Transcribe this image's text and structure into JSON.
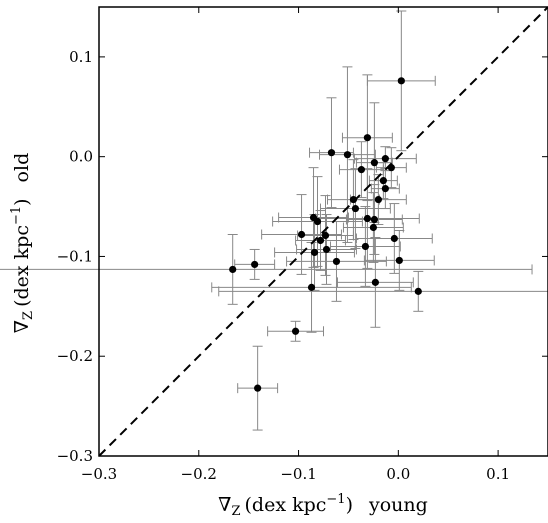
{
  "chart_data": {
    "type": "scatter",
    "title": "",
    "xlabel_main": "∇",
    "xlabel_sub": "Z",
    "xlabel_unit": "(dex kpc",
    "xlabel_exp": "−1",
    "xlabel_close": ")",
    "xlabel_tag": "young",
    "ylabel_main": "∇",
    "ylabel_sub": "Z",
    "ylabel_unit": "(dex kpc",
    "ylabel_exp": "−1",
    "ylabel_close": ")",
    "ylabel_tag": "old",
    "xlim": [
      -0.3,
      0.15
    ],
    "ylim": [
      -0.3,
      0.15
    ],
    "xticks": [
      -0.3,
      -0.2,
      -0.1,
      0.0,
      0.1
    ],
    "yticks": [
      -0.3,
      -0.2,
      -0.1,
      0.0,
      0.1
    ],
    "xtick_labels": [
      "−0.3",
      "−0.2",
      "−0.1",
      "0.0",
      "0.1"
    ],
    "ytick_labels": [
      "−0.3",
      "−0.2",
      "−0.1",
      "0.0",
      "0.1"
    ],
    "reference_line": {
      "style": "dashed",
      "from": [
        -0.3,
        -0.3
      ],
      "to": [
        0.15,
        0.15
      ]
    },
    "grid": false,
    "colors": {
      "points": "#000000",
      "errorbars": "#888888",
      "frame": "#000000"
    },
    "points": [
      {
        "x": 0.003,
        "y": 0.076,
        "xerr": 0.034,
        "yerr": 0.07
      },
      {
        "x": -0.031,
        "y": 0.019,
        "xerr": 0.025,
        "yerr": 0.063
      },
      {
        "x": -0.067,
        "y": 0.004,
        "xerr": 0.022,
        "yerr": 0.055
      },
      {
        "x": -0.051,
        "y": 0.002,
        "xerr": 0.028,
        "yerr": 0.088
      },
      {
        "x": -0.013,
        "y": -0.002,
        "xerr": 0.031,
        "yerr": 0.012
      },
      {
        "x": -0.007,
        "y": -0.011,
        "xerr": 0.015,
        "yerr": 0.02
      },
      {
        "x": -0.024,
        "y": -0.006,
        "xerr": 0.018,
        "yerr": 0.06
      },
      {
        "x": -0.037,
        "y": -0.013,
        "xerr": 0.022,
        "yerr": 0.028
      },
      {
        "x": -0.015,
        "y": -0.024,
        "xerr": 0.014,
        "yerr": 0.018
      },
      {
        "x": -0.013,
        "y": -0.032,
        "xerr": 0.014,
        "yerr": 0.02
      },
      {
        "x": -0.02,
        "y": -0.043,
        "xerr": 0.028,
        "yerr": 0.025
      },
      {
        "x": -0.045,
        "y": -0.043,
        "xerr": 0.026,
        "yerr": 0.04
      },
      {
        "x": -0.043,
        "y": -0.052,
        "xerr": 0.035,
        "yerr": 0.04
      },
      {
        "x": -0.085,
        "y": -0.061,
        "xerr": 0.035,
        "yerr": 0.05
      },
      {
        "x": -0.081,
        "y": -0.065,
        "xerr": 0.045,
        "yerr": 0.045
      },
      {
        "x": -0.031,
        "y": -0.062,
        "xerr": 0.052,
        "yerr": 0.05
      },
      {
        "x": -0.024,
        "y": -0.063,
        "xerr": 0.028,
        "yerr": 0.035
      },
      {
        "x": -0.025,
        "y": -0.071,
        "xerr": 0.03,
        "yerr": 0.035
      },
      {
        "x": -0.073,
        "y": -0.079,
        "xerr": 0.028,
        "yerr": 0.04
      },
      {
        "x": -0.097,
        "y": -0.078,
        "xerr": 0.04,
        "yerr": 0.04
      },
      {
        "x": -0.078,
        "y": -0.084,
        "xerr": 0.025,
        "yerr": 0.03
      },
      {
        "x": -0.004,
        "y": -0.082,
        "xerr": 0.038,
        "yerr": 0.035
      },
      {
        "x": -0.033,
        "y": -0.09,
        "xerr": 0.035,
        "yerr": 0.04
      },
      {
        "x": -0.072,
        "y": -0.093,
        "xerr": 0.03,
        "yerr": 0.035
      },
      {
        "x": -0.084,
        "y": -0.096,
        "xerr": 0.04,
        "yerr": 0.038
      },
      {
        "x": 0.001,
        "y": -0.104,
        "xerr": 0.035,
        "yerr": 0.03
      },
      {
        "x": -0.062,
        "y": -0.105,
        "xerr": 0.05,
        "yerr": 0.04
      },
      {
        "x": -0.144,
        "y": -0.108,
        "xerr": 0.02,
        "yerr": 0.015
      },
      {
        "x": -0.166,
        "y": -0.113,
        "xerr": 0.3,
        "yerr": 0.035
      },
      {
        "x": -0.023,
        "y": -0.126,
        "xerr": 0.038,
        "yerr": 0.045
      },
      {
        "x": -0.087,
        "y": -0.131,
        "xerr": 0.1,
        "yerr": 0.045
      },
      {
        "x": 0.02,
        "y": -0.135,
        "xerr": 0.2,
        "yerr": 0.02
      },
      {
        "x": -0.103,
        "y": -0.175,
        "xerr": 0.028,
        "yerr": 0.01
      },
      {
        "x": -0.141,
        "y": -0.232,
        "xerr": 0.02,
        "yerr": 0.042
      }
    ]
  }
}
